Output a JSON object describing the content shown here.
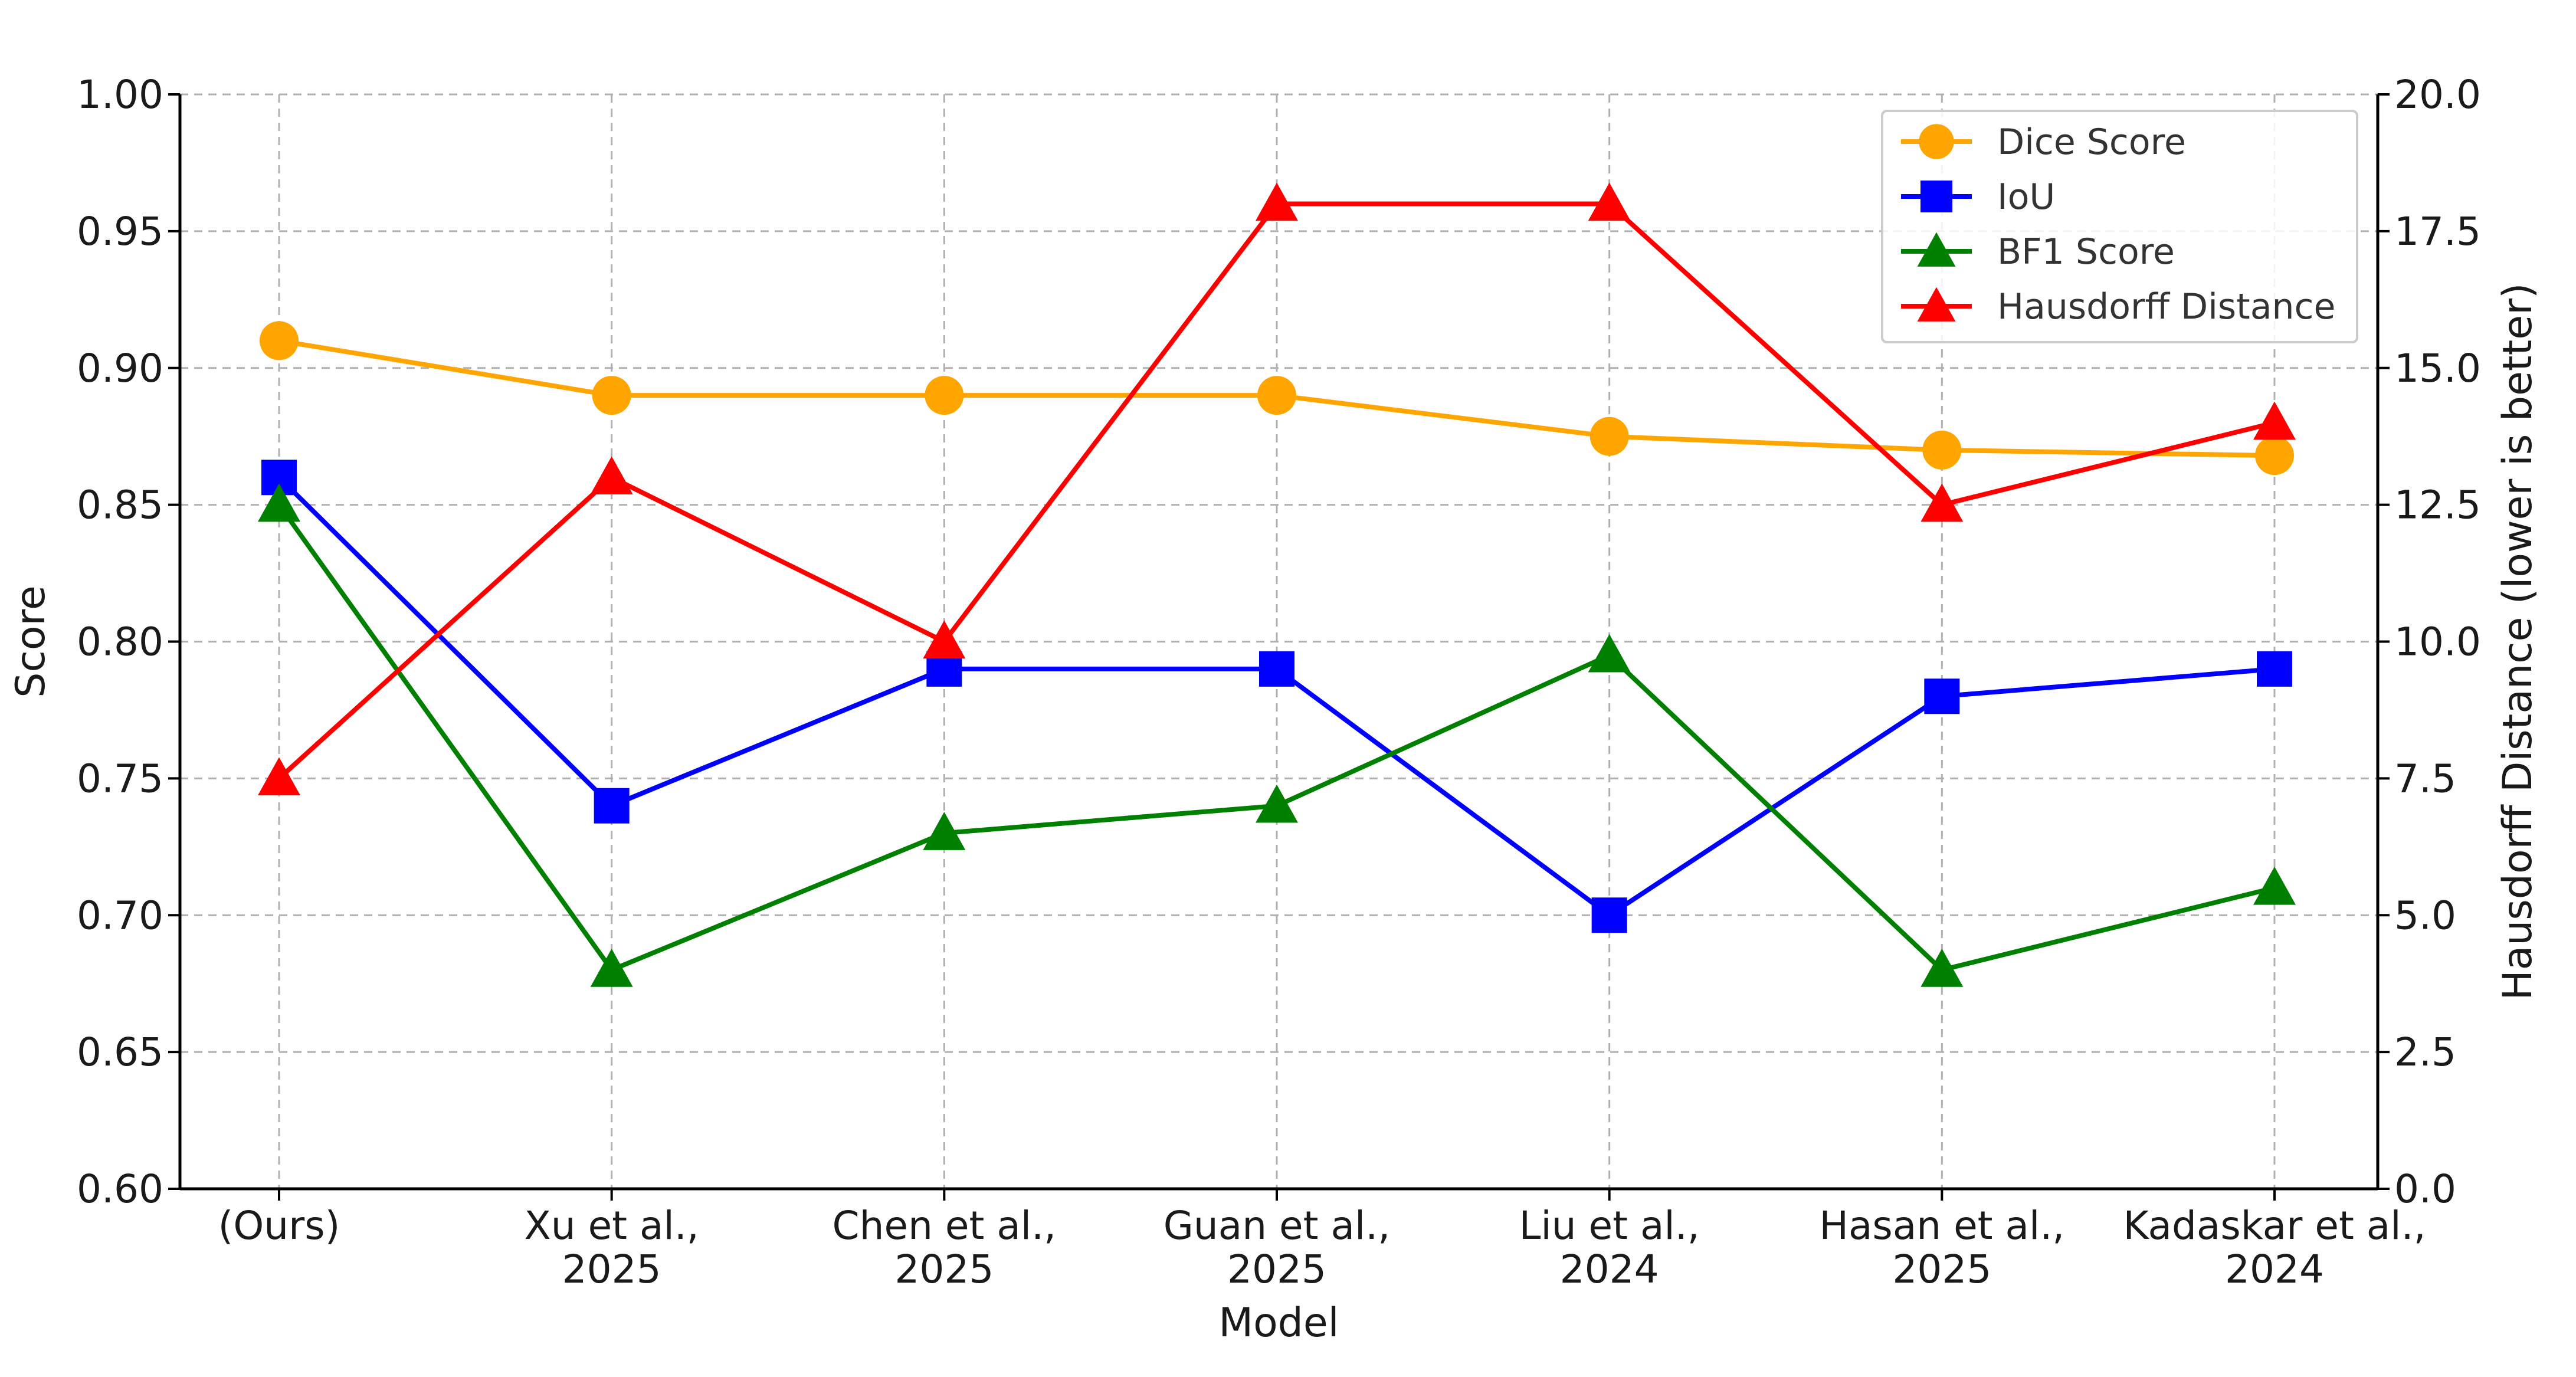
{
  "chart_data": {
    "type": "line",
    "title": "",
    "xlabel": "Model",
    "ylabel": "Score",
    "ylabel_right": "Hausdorff Distance (lower is better)",
    "categories": [
      [
        "(Ours)"
      ],
      [
        "Xu et al.,",
        "2025"
      ],
      [
        "Chen et al.,",
        "2025"
      ],
      [
        "Guan et al.,",
        "2025"
      ],
      [
        "Liu et al.,",
        "2024"
      ],
      [
        "Hasan et al.,",
        "2025"
      ],
      [
        "Kadaskar et al.,",
        "2024"
      ]
    ],
    "ylim": [
      0.6,
      1.0
    ],
    "yticks": [
      "0.60",
      "0.65",
      "0.70",
      "0.75",
      "0.80",
      "0.85",
      "0.90",
      "0.95",
      "1.00"
    ],
    "ylim_right": [
      0.0,
      20.0
    ],
    "yticks_right": [
      "0.0",
      "2.5",
      "5.0",
      "7.5",
      "10.0",
      "12.5",
      "15.0",
      "17.5",
      "20.0"
    ],
    "grid": true,
    "legend_position": "top-right",
    "series": [
      {
        "name": "Dice Score",
        "axis": "left",
        "color": "#FFA500",
        "marker": "circle",
        "values": [
          0.91,
          0.89,
          0.89,
          0.89,
          0.875,
          0.87,
          0.868
        ]
      },
      {
        "name": "IoU",
        "axis": "left",
        "color": "#0000FF",
        "marker": "square",
        "values": [
          0.86,
          0.74,
          0.79,
          0.79,
          0.7,
          0.78,
          0.79
        ]
      },
      {
        "name": "BF1 Score",
        "axis": "left",
        "color": "#008000",
        "marker": "triangle",
        "values": [
          0.85,
          0.68,
          0.73,
          0.74,
          0.795,
          0.68,
          0.71
        ]
      },
      {
        "name": "Hausdorff Distance",
        "axis": "right",
        "color": "#FF0000",
        "marker": "triangle",
        "values": [
          7.5,
          13.0,
          10.0,
          18.0,
          18.0,
          12.5,
          14.0
        ]
      }
    ]
  }
}
